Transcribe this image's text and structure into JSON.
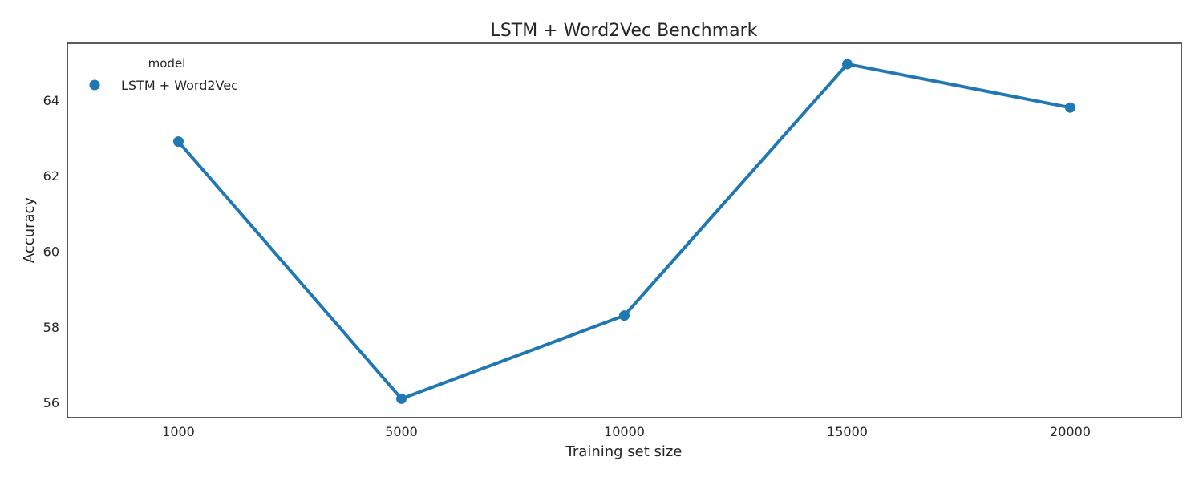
{
  "chart_data": {
    "type": "line",
    "title": "LSTM + Word2Vec Benchmark",
    "xlabel": "Training set size",
    "ylabel": "Accuracy",
    "categories": [
      "1000",
      "5000",
      "10000",
      "15000",
      "20000"
    ],
    "series": [
      {
        "name": "LSTM + Word2Vec",
        "values": [
          62.9,
          56.1,
          58.3,
          64.95,
          63.8
        ],
        "color": "#1f77b4"
      }
    ],
    "yticks": [
      "56",
      "58",
      "60",
      "62",
      "64"
    ],
    "ylim": [
      55.6,
      65.5
    ],
    "grid": false,
    "legend": {
      "title": "model",
      "placement": "top-left"
    },
    "marker": "circle"
  }
}
